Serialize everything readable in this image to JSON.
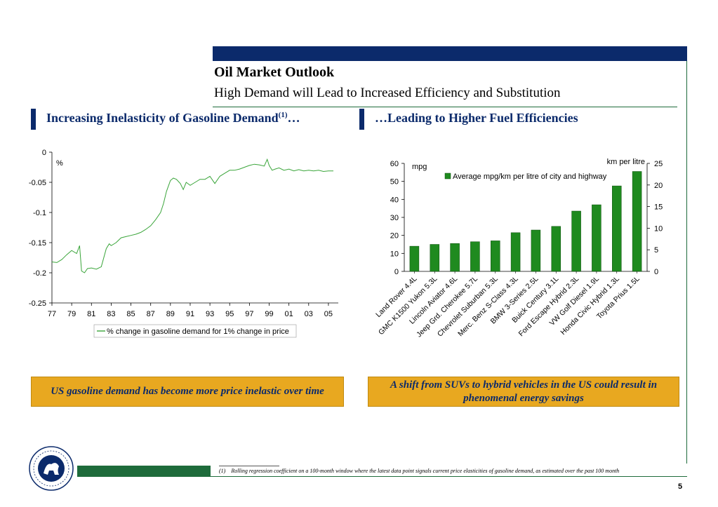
{
  "header": {
    "title": "Oil Market Outlook",
    "subtitle": "High Demand will Lead to Increased Efficiency and Substitution"
  },
  "left_section": {
    "title": "Increasing Inelasticity of Gasoline Demand",
    "title_sup": "(1)",
    "title_suffix": "…",
    "callout": "US gasoline demand has become more price inelastic over time"
  },
  "right_section": {
    "title": "…Leading to Higher Fuel Efficiencies",
    "callout": "A shift from SUVs to hybrid vehicles in the US could result in phenomenal energy savings"
  },
  "footnote": {
    "marker": "(1)",
    "text": "Rolling regression coefficient on a 100-month window where the latest data point signals current price elasticities of gasoline demand, as estimated over the past 100 month"
  },
  "page_number": "5",
  "colors": {
    "navy": "#0b2a6b",
    "green": "#1e6b3b",
    "gold": "#e8a820",
    "line_green": "#3aa53a",
    "bar_green": "#1f8a1f"
  },
  "chart_data": [
    {
      "type": "line",
      "title": "",
      "ylabel": "%",
      "ylim": [
        -0.25,
        0
      ],
      "yticks": [
        "0",
        "-0.05",
        "-0.1",
        "-0.15",
        "-0.2",
        "-0.25"
      ],
      "ytick_values": [
        0,
        -0.05,
        -0.1,
        -0.15,
        -0.2,
        -0.25
      ],
      "xlim": [
        1977,
        2006
      ],
      "xticks": [
        "77",
        "79",
        "81",
        "83",
        "85",
        "87",
        "89",
        "91",
        "93",
        "95",
        "97",
        "99",
        "01",
        "03",
        "05"
      ],
      "xtick_values": [
        1977,
        1979,
        1981,
        1983,
        1985,
        1987,
        1989,
        1991,
        1993,
        1995,
        1997,
        1999,
        2001,
        2003,
        2005
      ],
      "legend": "bottom",
      "series": [
        {
          "name": "% change in gasoline demand for 1% change in price",
          "x": [
            1977,
            1977.5,
            1978,
            1978.5,
            1979,
            1979.5,
            1979.8,
            1980,
            1980.3,
            1980.6,
            1981,
            1981.5,
            1982,
            1982.5,
            1982.8,
            1983,
            1983.5,
            1984,
            1984.5,
            1985,
            1985.5,
            1986,
            1986.5,
            1987,
            1987.5,
            1988,
            1988.3,
            1988.6,
            1989,
            1989.3,
            1989.6,
            1990,
            1990.3,
            1990.6,
            1991,
            1991.5,
            1992,
            1992.5,
            1993,
            1993.5,
            1994,
            1994.5,
            1995,
            1995.5,
            1996,
            1996.5,
            1997,
            1997.5,
            1998,
            1998.5,
            1998.8,
            1999,
            1999.3,
            1999.6,
            2000,
            2000.5,
            2001,
            2001.5,
            2002,
            2002.5,
            2003,
            2003.5,
            2004,
            2004.5,
            2005,
            2005.5
          ],
          "y": [
            -0.182,
            -0.183,
            -0.178,
            -0.17,
            -0.163,
            -0.168,
            -0.155,
            -0.197,
            -0.2,
            -0.193,
            -0.192,
            -0.194,
            -0.19,
            -0.16,
            -0.152,
            -0.155,
            -0.15,
            -0.142,
            -0.14,
            -0.138,
            -0.136,
            -0.133,
            -0.128,
            -0.122,
            -0.112,
            -0.1,
            -0.085,
            -0.065,
            -0.047,
            -0.043,
            -0.045,
            -0.052,
            -0.062,
            -0.05,
            -0.055,
            -0.05,
            -0.045,
            -0.045,
            -0.04,
            -0.052,
            -0.04,
            -0.035,
            -0.03,
            -0.03,
            -0.028,
            -0.025,
            -0.022,
            -0.02,
            -0.021,
            -0.023,
            -0.012,
            -0.022,
            -0.03,
            -0.028,
            -0.026,
            -0.03,
            -0.028,
            -0.031,
            -0.029,
            -0.031,
            -0.03,
            -0.031,
            -0.03,
            -0.032,
            -0.031,
            -0.031
          ]
        }
      ]
    },
    {
      "type": "bar",
      "title": "",
      "ylabel": "mpg",
      "y2label": "km per litre",
      "ylim": [
        0,
        60
      ],
      "yticks": [
        0,
        10,
        20,
        30,
        40,
        50,
        60
      ],
      "y2lim": [
        0,
        25
      ],
      "y2ticks": [
        0,
        5,
        10,
        15,
        20,
        25
      ],
      "legend": "top",
      "categories": [
        "Land Rover 4.4L",
        "GMC K1500 Yukon 5.3L",
        "Lincoln Aviator 4.6L",
        "Jeep Grd. Cherokee 5.7L",
        "Chevrolet Suburban 5.3L",
        "Merc. Benz S-Class 4.3L",
        "BMW 3-Series 2.5L",
        "Buick Century 3.1L",
        "Ford Escape Hybrid 2.3L",
        "VW Golf Diesel 1.9L",
        "Honda Civic Hybrid 1.3L",
        "Toyota Prius 1.5L"
      ],
      "series": [
        {
          "name": "Average mpg/km per litre of city and highway",
          "values": [
            14,
            15,
            15.5,
            16.5,
            17,
            21.5,
            23,
            25,
            33.5,
            37,
            47.5,
            55.5
          ]
        }
      ]
    }
  ]
}
